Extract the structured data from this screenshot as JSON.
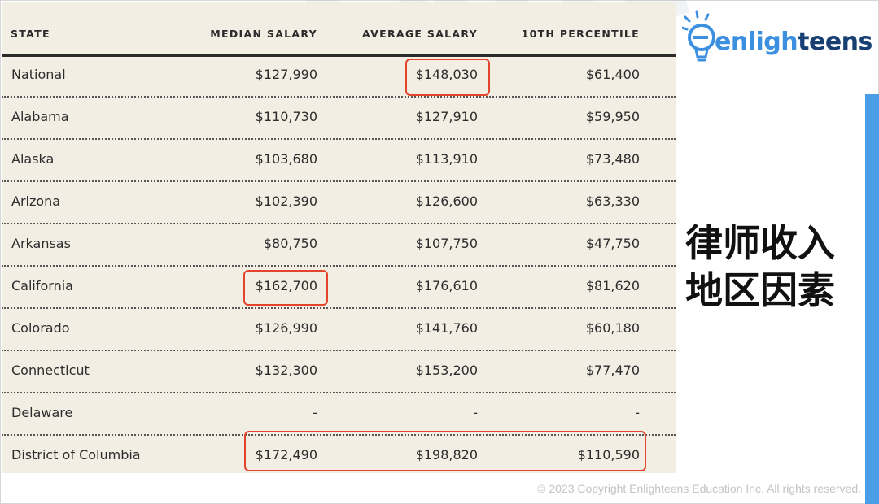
{
  "brand": {
    "logo_accent": "e",
    "logo_rest_light": "nligh",
    "logo_rest_dark": "teens",
    "watermark": "enlighteens",
    "colors": {
      "accent": "#3d8fe0",
      "dark": "#173f74",
      "highlight": "#e2452b",
      "panel": "#f3eee4"
    }
  },
  "title_cn": {
    "line1": "律师收入",
    "line2": "地区因素"
  },
  "table": {
    "headers": {
      "state": "STATE",
      "median": "MEDIAN SALARY",
      "average": "AVERAGE SALARY",
      "tenth": "10TH PERCENTILE"
    },
    "rows": [
      {
        "state": "National",
        "median": "$127,990",
        "average": "$148,030",
        "tenth": "$61,400"
      },
      {
        "state": "Alabama",
        "median": "$110,730",
        "average": "$127,910",
        "tenth": "$59,950"
      },
      {
        "state": "Alaska",
        "median": "$103,680",
        "average": "$113,910",
        "tenth": "$73,480"
      },
      {
        "state": "Arizona",
        "median": "$102,390",
        "average": "$126,600",
        "tenth": "$63,330"
      },
      {
        "state": "Arkansas",
        "median": "$80,750",
        "average": "$107,750",
        "tenth": "$47,750"
      },
      {
        "state": "California",
        "median": "$162,700",
        "average": "$176,610",
        "tenth": "$81,620"
      },
      {
        "state": "Colorado",
        "median": "$126,990",
        "average": "$141,760",
        "tenth": "$60,180"
      },
      {
        "state": "Connecticut",
        "median": "$132,300",
        "average": "$153,200",
        "tenth": "$77,470"
      },
      {
        "state": "Delaware",
        "median": "-",
        "average": "-",
        "tenth": "-"
      },
      {
        "state": "District of Columbia",
        "median": "$172,490",
        "average": "$198,820",
        "tenth": "$110,590"
      }
    ]
  },
  "footer": {
    "copyright": "© 2023 Copyright Enlighteens Education Inc. All rights reserved."
  }
}
